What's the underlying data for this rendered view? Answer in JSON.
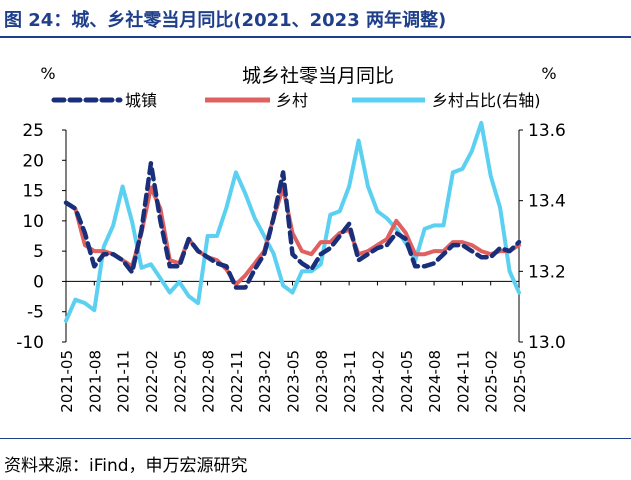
{
  "figure": {
    "title": "图 24：城、乡社零当月同比(2021、2023 两年调整)",
    "source": "资料来源：iFind，申万宏源研究"
  },
  "chart_data": {
    "type": "line",
    "title": "城乡社零当月同比",
    "left_unit": "%",
    "right_unit": "%",
    "ylim": [
      -10,
      25
    ],
    "yticks": [
      -10,
      -5,
      0,
      5,
      10,
      15,
      20,
      25
    ],
    "ylim_right": [
      13.0,
      13.6
    ],
    "yticks_right": [
      "13.0",
      "13.2",
      "13.4",
      "13.6"
    ],
    "x_tick_labels": [
      "2021-05",
      "2021-08",
      "2021-11",
      "2022-02",
      "2022-05",
      "2022-08",
      "2022-11",
      "2023-02",
      "2023-05",
      "2023-08",
      "2023-11",
      "2024-02",
      "2024-05",
      "2024-08",
      "2024-11",
      "2025-02",
      "2025-05"
    ],
    "x": [
      "2021-05",
      "2021-06",
      "2021-07",
      "2021-08",
      "2021-09",
      "2021-10",
      "2021-11",
      "2021-12",
      "2022-01",
      "2022-02",
      "2022-03",
      "2022-04",
      "2022-05",
      "2022-06",
      "2022-07",
      "2022-08",
      "2022-09",
      "2022-10",
      "2022-11",
      "2022-12",
      "2023-01",
      "2023-02",
      "2023-03",
      "2023-04",
      "2023-05",
      "2023-06",
      "2023-07",
      "2023-08",
      "2023-09",
      "2023-10",
      "2023-11",
      "2023-12",
      "2024-01",
      "2024-02",
      "2024-03",
      "2024-04",
      "2024-05",
      "2024-06",
      "2024-07",
      "2024-08",
      "2024-09",
      "2024-10",
      "2024-11",
      "2024-12",
      "2025-01",
      "2025-02",
      "2025-03",
      "2025-04",
      "2025-05"
    ],
    "series": [
      {
        "name": "城镇",
        "axis": "left",
        "color": "#1a2f7a",
        "style": "dashed",
        "values": [
          13,
          12,
          8,
          2.5,
          4.5,
          4.5,
          3.5,
          1.5,
          8.5,
          19.5,
          10,
          2.5,
          2.5,
          7,
          5,
          4,
          3,
          2.5,
          -1,
          -1,
          2,
          4.5,
          10.5,
          18,
          4.5,
          3,
          2,
          4.5,
          5.5,
          7.5,
          9.5,
          3.5,
          4.5,
          5.5,
          6,
          8,
          7,
          2.5,
          2.5,
          3,
          4.5,
          6,
          6,
          5,
          4,
          4,
          5.5,
          5,
          6.5
        ]
      },
      {
        "name": "乡村",
        "axis": "left",
        "color": "#e06060",
        "style": "solid",
        "values": [
          13,
          12,
          6,
          5,
          5,
          4.5,
          3.5,
          2.5,
          8,
          15.5,
          12,
          3.5,
          3,
          7,
          5,
          4,
          3.5,
          2,
          -0.5,
          1,
          3,
          5,
          10.5,
          15.5,
          8,
          5,
          4.5,
          6.5,
          6.5,
          8,
          8.5,
          4.5,
          5,
          6,
          7,
          10,
          8,
          4.5,
          4.5,
          5,
          5,
          6.5,
          6.5,
          6,
          5,
          4.5,
          5,
          5,
          6
        ]
      },
      {
        "name": "乡村占比(右轴)",
        "axis": "right",
        "color": "#5bd0f0",
        "style": "solid",
        "values": [
          13.06,
          13.12,
          13.11,
          13.09,
          13.27,
          13.33,
          13.44,
          13.34,
          13.21,
          13.22,
          13.18,
          13.14,
          13.17,
          13.13,
          13.11,
          13.3,
          13.3,
          13.38,
          13.48,
          13.42,
          13.35,
          13.3,
          13.25,
          13.16,
          13.14,
          13.2,
          13.2,
          13.22,
          13.36,
          13.37,
          13.44,
          13.57,
          13.44,
          13.37,
          13.35,
          13.32,
          13.28,
          13.23,
          13.32,
          13.33,
          13.33,
          13.48,
          13.49,
          13.54,
          13.62,
          13.47,
          13.38,
          13.2,
          13.14
        ]
      }
    ]
  }
}
